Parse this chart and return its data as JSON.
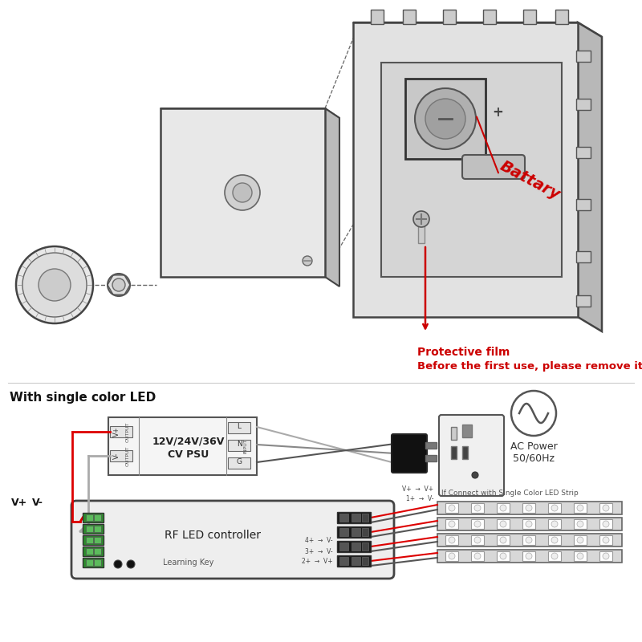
{
  "bg_color": "#ffffff",
  "red_color": "#cc0000",
  "dark_color": "#222222",
  "gray_color": "#888888",
  "light_gray": "#d8d8d8",
  "medium_gray": "#aaaaaa",
  "text_battery": "Battary",
  "text_protective1": "Protective film",
  "text_protective2": "Before the first use, please remove it",
  "text_single_led": "With single color LED",
  "text_psu_line1": "12V/24V/36V",
  "text_psu_line2": "CV PSU",
  "text_ac": "AC Power\n50/60Hz",
  "text_rf_ctrl": "RF LED controller",
  "text_learning": "Learning Key",
  "text_if_connect": "If Connect with Single Color LED Strip",
  "line_color_red": "#dd0000",
  "line_color_black": "#111111",
  "line_color_gray": "#777777",
  "line_color_lgray": "#aaaaaa"
}
